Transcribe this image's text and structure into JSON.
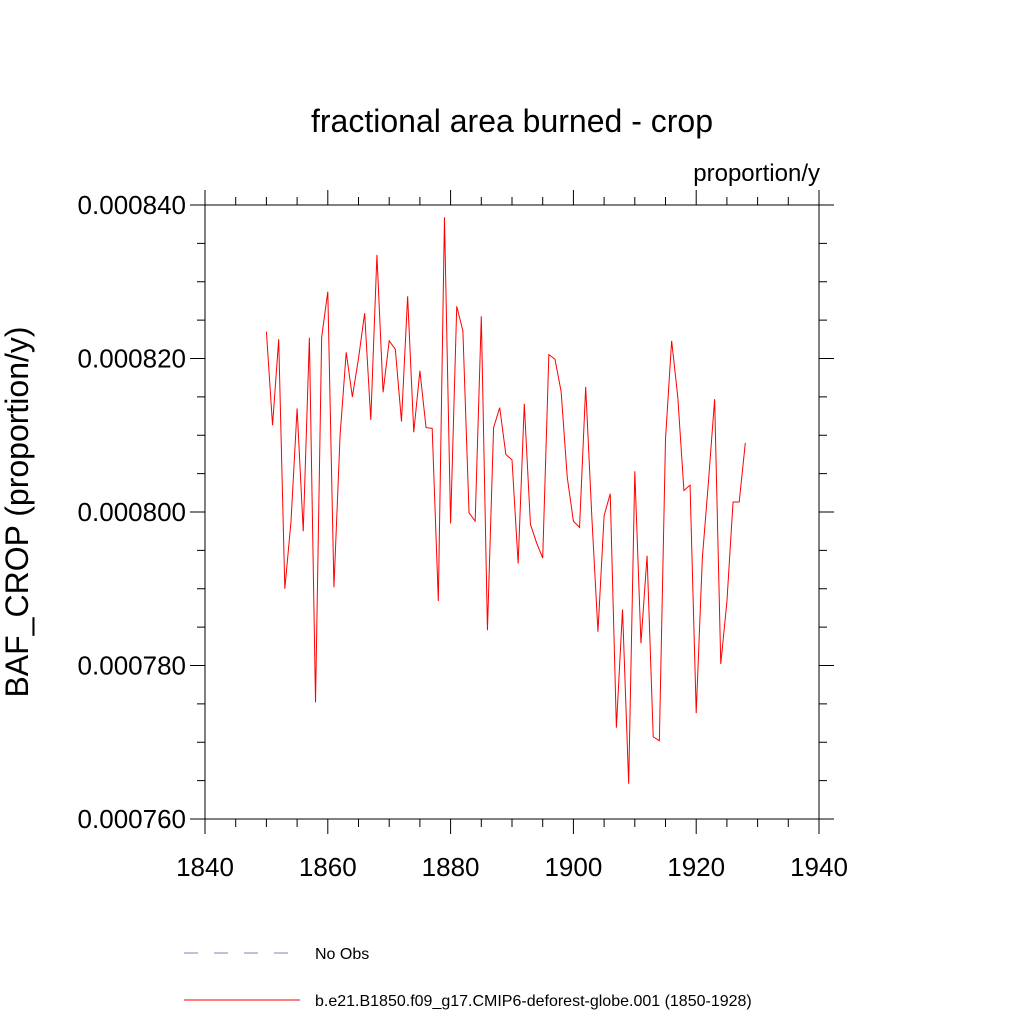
{
  "chart_data": {
    "type": "line",
    "title": "fractional area burned - crop",
    "units": "proportion/y",
    "xlabel": "",
    "ylabel": "BAF_CROP  (proportion/y)",
    "xlim": [
      1840,
      1940
    ],
    "ylim": [
      0.00076,
      0.00084
    ],
    "x_ticks": [
      1840,
      1860,
      1880,
      1900,
      1920,
      1940
    ],
    "x_tick_labels": [
      "1840",
      "1860",
      "1880",
      "1900",
      "1920",
      "1940"
    ],
    "y_ticks": [
      0.00076,
      0.00078,
      0.0008,
      0.00082,
      0.00084
    ],
    "y_tick_labels": [
      "0.000760",
      "0.000780",
      "0.000800",
      "0.000820",
      "0.000840"
    ],
    "grid": false,
    "legend_position": "bottom",
    "series": [
      {
        "name": "No Obs",
        "color": "#8080b0",
        "style": "dashed",
        "values": []
      },
      {
        "name": "b.e21.B1850.f09_g17.CMIP6-deforest-globe.001 (1850-1928)",
        "color": "#ff0000",
        "style": "solid",
        "x": [
          1850,
          1851,
          1852,
          1853,
          1854,
          1855,
          1856,
          1857,
          1858,
          1859,
          1860,
          1861,
          1862,
          1863,
          1864,
          1865,
          1866,
          1867,
          1868,
          1869,
          1870,
          1871,
          1872,
          1873,
          1874,
          1875,
          1876,
          1877,
          1878,
          1879,
          1880,
          1881,
          1882,
          1883,
          1884,
          1885,
          1886,
          1887,
          1888,
          1889,
          1890,
          1891,
          1892,
          1893,
          1894,
          1895,
          1896,
          1897,
          1898,
          1899,
          1900,
          1901,
          1902,
          1903,
          1904,
          1905,
          1906,
          1907,
          1908,
          1909,
          1910,
          1911,
          1912,
          1913,
          1914,
          1915,
          1916,
          1917,
          1918,
          1919,
          1920,
          1921,
          1922,
          1923,
          1924,
          1925,
          1926,
          1927,
          1928
        ],
        "values": [
          0.0008235,
          0.0008113,
          0.0008225,
          0.00079,
          0.0007987,
          0.0008135,
          0.0007975,
          0.0008227,
          0.0007752,
          0.0008228,
          0.0008287,
          0.0007902,
          0.00081,
          0.0008208,
          0.000815,
          0.00082,
          0.0008259,
          0.000812,
          0.0008335,
          0.0008156,
          0.0008223,
          0.0008212,
          0.0008118,
          0.0008281,
          0.0008104,
          0.0008184,
          0.000811,
          0.0008109,
          0.0007884,
          0.0008384,
          0.0007985,
          0.0008268,
          0.0008236,
          0.0007999,
          0.0007988,
          0.0008255,
          0.0007846,
          0.000811,
          0.0008136,
          0.0008075,
          0.0008068,
          0.0007933,
          0.0008141,
          0.0007984,
          0.000796,
          0.000794,
          0.0008205,
          0.0008199,
          0.0008157,
          0.0008045,
          0.0007988,
          0.000798,
          0.0008163,
          0.0007994,
          0.0007844,
          0.0007995,
          0.0008024,
          0.0007719,
          0.0007873,
          0.0007646,
          0.0008053,
          0.0007829,
          0.0007943,
          0.0007707,
          0.0007702,
          0.0008095,
          0.0008223,
          0.000815,
          0.0008028,
          0.0008035,
          0.0007738,
          0.000794,
          0.000804,
          0.0008147,
          0.0007802,
          0.0007883,
          0.0008013,
          0.0008013,
          0.000809
        ]
      }
    ]
  }
}
